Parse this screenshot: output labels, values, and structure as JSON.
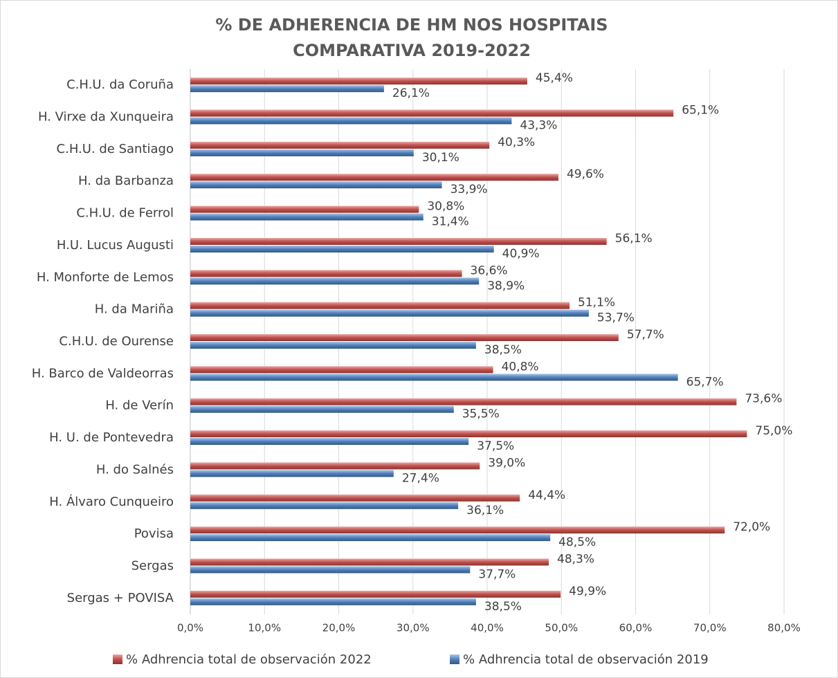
{
  "chart_data": {
    "type": "hbar",
    "title": [
      "% DE ADHERENCIA DE HM NOS HOSPITAIS",
      "COMPARATIVA 2019-2022"
    ],
    "categories": [
      "C.H.U. da Coruña",
      "H. Virxe da Xunqueira",
      "C.H.U. de Santiago",
      "H. da Barbanza",
      "C.H.U. de Ferrol",
      "H.U. Lucus Augusti",
      "H. Monforte de Lemos",
      "H. da Mariña",
      "C.H.U. de Ourense",
      "H. Barco de Valdeorras",
      "H. de Verín",
      "H. U. de Pontevedra",
      "H. do Salnés",
      "H. Álvaro Cunqueiro",
      "Povisa",
      "Sergas",
      "Sergas + POVISA"
    ],
    "series": [
      {
        "name": "% Adhrencia total de observación 2022",
        "color": "#c0504d",
        "values": [
          45.4,
          65.1,
          40.3,
          49.6,
          30.8,
          56.1,
          36.6,
          51.1,
          57.7,
          40.8,
          73.6,
          75.0,
          39.0,
          44.4,
          72.0,
          48.3,
          49.9
        ],
        "value_labels": [
          "45,4%",
          "65,1%",
          "40,3%",
          "49,6%",
          "30,8%",
          "56,1%",
          "36,6%",
          "51,1%",
          "57,7%",
          "40,8%",
          "73,6%",
          "75,0%",
          "39,0%",
          "44,4%",
          "72,0%",
          "48,3%",
          "49,9%"
        ]
      },
      {
        "name": "% Adhrencia total de observación 2019",
        "color": "#4f81bd",
        "values": [
          26.1,
          43.3,
          30.1,
          33.9,
          31.4,
          40.9,
          38.9,
          53.7,
          38.5,
          65.7,
          35.5,
          37.5,
          27.4,
          36.1,
          48.5,
          37.7,
          38.5
        ],
        "value_labels": [
          "26,1%",
          "43,3%",
          "30,1%",
          "33,9%",
          "31,4%",
          "40,9%",
          "38,9%",
          "53,7%",
          "38,5%",
          "65,7%",
          "35,5%",
          "37,5%",
          "27,4%",
          "36,1%",
          "48,5%",
          "37,7%",
          "38,5%"
        ]
      }
    ],
    "xlim": [
      0,
      80
    ],
    "xticks": [
      {
        "value": 0,
        "label": "0,0%"
      },
      {
        "value": 10,
        "label": "10,0%"
      },
      {
        "value": 20,
        "label": "20,0%"
      },
      {
        "value": 30,
        "label": "30,0%"
      },
      {
        "value": 40,
        "label": "40,0%"
      },
      {
        "value": 50,
        "label": "50,0%"
      },
      {
        "value": 60,
        "label": "60,0%"
      },
      {
        "value": 70,
        "label": "70,0%"
      },
      {
        "value": 80,
        "label": "80,0%"
      }
    ],
    "grid": true,
    "legend": "bottom"
  }
}
